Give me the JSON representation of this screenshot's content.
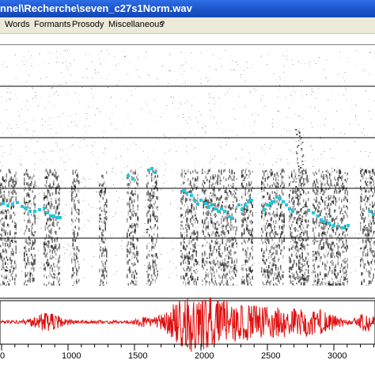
{
  "window": {
    "title": "nnel\\Recherche\\seven_c27s1Norm.wav"
  },
  "menu": {
    "items": [
      {
        "label": "Words"
      },
      {
        "label": "Formants"
      },
      {
        "label": "Prosody"
      },
      {
        "label": "Miscellaneous"
      },
      {
        "label": "?"
      }
    ]
  },
  "colors": {
    "pitch": "#22c8d8",
    "waveform": "#e01010",
    "titlebar": "#1a52c8",
    "menubar": "#ece9d8"
  },
  "time_axis": {
    "ticks": [
      "1000",
      "1500",
      "2000",
      "2500",
      "3000"
    ],
    "partial_tick_left": "0"
  }
}
